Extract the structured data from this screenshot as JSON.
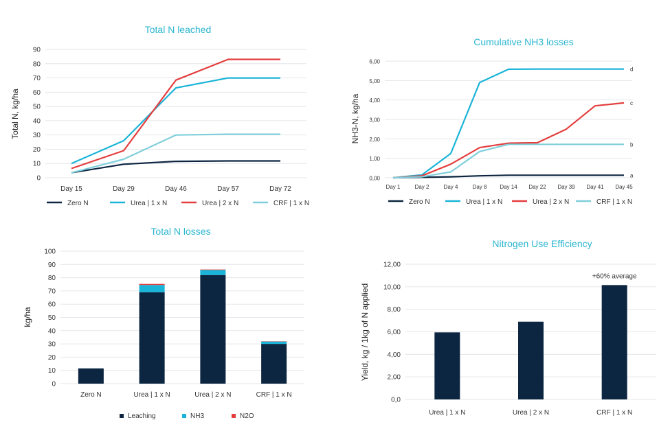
{
  "chart_data": [
    {
      "id": "c1",
      "type": "line",
      "title": "Total N leached",
      "ylabel": "Total N, kg/ha",
      "xlabel": "",
      "ylim": [
        0,
        90
      ],
      "yticks": [
        "0",
        "10",
        "20",
        "30",
        "40",
        "50",
        "60",
        "70",
        "80",
        "90"
      ],
      "categories": [
        "Day 15",
        "Day 29",
        "Day 46",
        "Day 57",
        "Day 72"
      ],
      "grid": true,
      "legend_position": "bottom",
      "series": [
        {
          "name": "Zero N",
          "color": "#0c2540",
          "values": [
            3.5,
            9.5,
            11.5,
            11.8,
            11.8
          ]
        },
        {
          "name": "Urea | 1 x N",
          "color": "#1ab4d8",
          "values": [
            10,
            26,
            63,
            70,
            70
          ]
        },
        {
          "name": "Urea | 2 x N",
          "color": "#e43d3d",
          "values": [
            6.5,
            19,
            68.5,
            83,
            83
          ]
        },
        {
          "name": "CRF | 1 x N",
          "color": "#7fcfdb",
          "values": [
            3.5,
            13,
            30,
            30.5,
            30.5
          ]
        }
      ]
    },
    {
      "id": "c2",
      "type": "line",
      "title": "Cumulative NH3 losses",
      "ylabel": "NH3-N, kg/ha",
      "xlabel": "",
      "ylim": [
        0,
        6
      ],
      "yticks": [
        "0,00",
        "1,00",
        "2,00",
        "3,00",
        "4,00",
        "5,00",
        "6,00"
      ],
      "categories": [
        "Day 1",
        "Day 2",
        "Day 4",
        "Day 8",
        "Day 14",
        "Day 22",
        "Day 39",
        "Day 41",
        "Day 45"
      ],
      "grid": true,
      "legend_position": "bottom",
      "series": [
        {
          "name": "Zero N",
          "color": "#0c2540",
          "end_label": "a",
          "values": [
            0,
            0.02,
            0.05,
            0.1,
            0.13,
            0.13,
            0.13,
            0.13,
            0.13
          ]
        },
        {
          "name": "Urea | 1 x N",
          "color": "#1ab4d8",
          "end_label": "d",
          "values": [
            0,
            0.15,
            1.25,
            4.9,
            5.58,
            5.59,
            5.59,
            5.59,
            5.59
          ]
        },
        {
          "name": "Urea | 2 x N",
          "color": "#e43d3d",
          "end_label": "c",
          "values": [
            0,
            0.1,
            0.7,
            1.55,
            1.78,
            1.8,
            2.5,
            3.7,
            3.85
          ]
        },
        {
          "name": "CRF | 1 x N",
          "color": "#7fcfdb",
          "end_label": "b",
          "values": [
            0,
            0.05,
            0.3,
            1.35,
            1.72,
            1.72,
            1.72,
            1.72,
            1.72
          ]
        }
      ]
    },
    {
      "id": "c3",
      "type": "bar",
      "stacked": true,
      "title": "Total N losses",
      "ylabel": "kg/ha",
      "xlabel": "",
      "ylim": [
        0,
        100
      ],
      "yticks": [
        "0",
        "10",
        "20",
        "30",
        "40",
        "50",
        "60",
        "70",
        "80",
        "90",
        "100"
      ],
      "categories": [
        "Zero N",
        "Urea | 1 x N",
        "Urea | 2 x N",
        "CRF | 1 x N"
      ],
      "grid": true,
      "legend_position": "bottom",
      "series": [
        {
          "name": "Leaching",
          "color": "#0c2540",
          "values": [
            11.5,
            69,
            82,
            30
          ]
        },
        {
          "name": "NH3",
          "color": "#1ab4d8",
          "values": [
            0.1,
            5.5,
            3.8,
            1.8
          ]
        },
        {
          "name": "N2O",
          "color": "#e43d3d",
          "values": [
            0.05,
            0.8,
            0.4,
            0.2
          ]
        }
      ]
    },
    {
      "id": "c4",
      "type": "bar",
      "title": "Nitrogen Use Efficiency",
      "ylabel": "Yield, kg / 1kg of N applied",
      "xlabel": "",
      "ylim": [
        0,
        12
      ],
      "yticks": [
        "0,0",
        "2,00",
        "4,00",
        "6,00",
        "8,00",
        "10,00",
        "12,00"
      ],
      "categories": [
        "Urea | 1 x N",
        "Urea | 2 x N",
        "CRF | 1 x N"
      ],
      "grid": true,
      "color": "#0c2540",
      "values": [
        5.95,
        6.9,
        10.15
      ],
      "annotation": {
        "text": "+60% average",
        "category_index": 2
      }
    }
  ]
}
